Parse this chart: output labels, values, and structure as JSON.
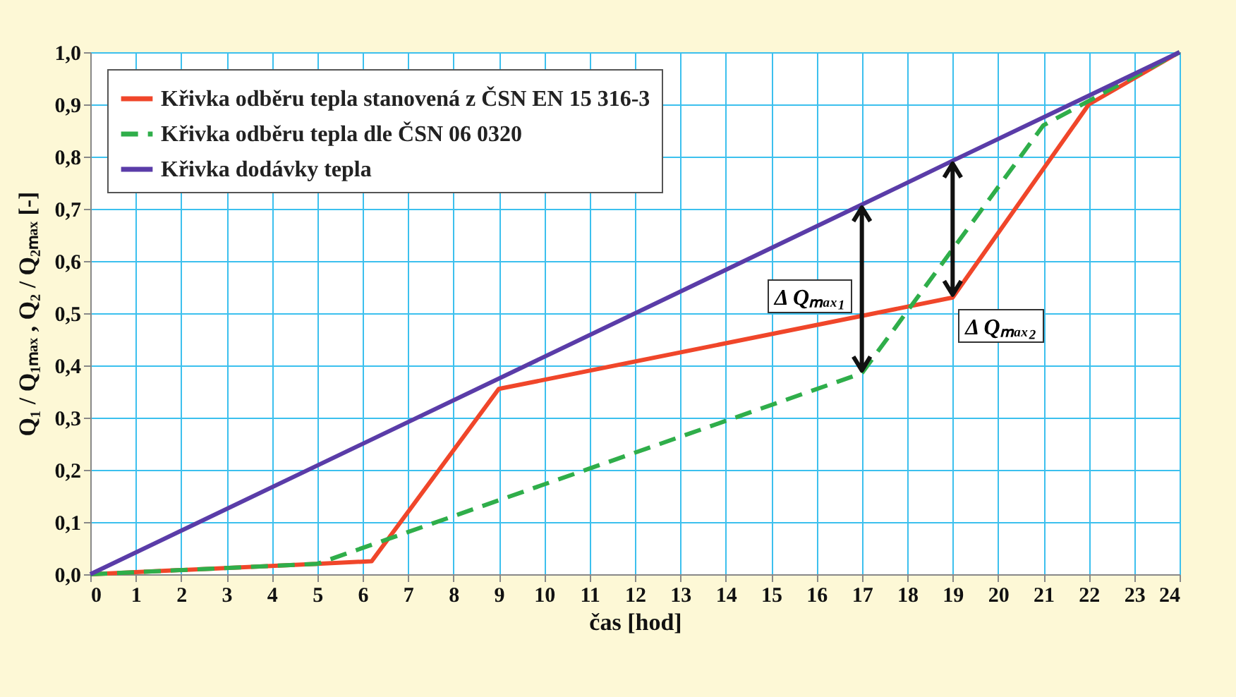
{
  "chart_data": {
    "type": "line",
    "xlabel": "čas [hod]",
    "ylabel": "Q₁ / Q₁ₘₐₓ ,  Q₂ / Q₂ₘₐₓ  [-]",
    "xlim": [
      0,
      24
    ],
    "xticks": [
      0,
      1,
      2,
      3,
      4,
      5,
      6,
      7,
      8,
      9,
      10,
      11,
      12,
      13,
      14,
      15,
      16,
      17,
      18,
      19,
      20,
      21,
      22,
      23,
      24
    ],
    "ylim": [
      0,
      1
    ],
    "yticks": [
      {
        "value": 0,
        "label": "0,0"
      },
      {
        "value": 0.1,
        "label": "0,1"
      },
      {
        "value": 0.2,
        "label": "0,2"
      },
      {
        "value": 0.3,
        "label": "0,3"
      },
      {
        "value": 0.4,
        "label": "0,4"
      },
      {
        "value": 0.5,
        "label": "0,5"
      },
      {
        "value": 0.6,
        "label": "0,6"
      },
      {
        "value": 0.7,
        "label": "0,7"
      },
      {
        "value": 0.8,
        "label": "0,8"
      },
      {
        "value": 0.9,
        "label": "0,9"
      },
      {
        "value": 1,
        "label": "1,0"
      }
    ],
    "grid": true,
    "legend": "top left",
    "series": [
      {
        "name": "Křivka odběru tepla stanovená z ČSN EN 15 316-3",
        "color": "#f0462a",
        "line_style": "solid",
        "x": [
          0,
          5,
          6.2,
          9,
          19,
          22,
          24
        ],
        "values": [
          0,
          0.02,
          0.025,
          0.355,
          0.53,
          0.9,
          1
        ]
      },
      {
        "name": "Křivka odběru tepla dle ČSN 06 0320",
        "color": "#2fae4a",
        "line_style": "dashed",
        "x": [
          0,
          5,
          17,
          21,
          24
        ],
        "values": [
          0,
          0.02,
          0.385,
          0.86,
          1
        ]
      },
      {
        "name": "Křivka dodávky tepla",
        "color": "#5a3ca8",
        "line_style": "solid",
        "x": [
          0,
          17,
          19,
          24
        ],
        "values": [
          0,
          0.708,
          0.792,
          1
        ]
      }
    ],
    "annotations": [
      {
        "text": "Δ Qₘₐₓ₁",
        "x": 17,
        "y": 0.495
      },
      {
        "text": "Δ Qₘₐₓ₂",
        "x": 19,
        "y": 0.53
      }
    ]
  }
}
